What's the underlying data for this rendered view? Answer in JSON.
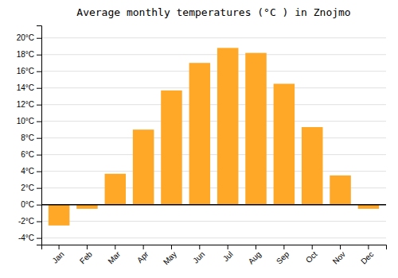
{
  "chart_data": {
    "type": "bar",
    "title": "Average monthly temperatures (°C ) in Znojmo",
    "categories": [
      "Jan",
      "Feb",
      "Mar",
      "Apr",
      "May",
      "Jun",
      "Jul",
      "Aug",
      "Sep",
      "Oct",
      "Nov",
      "Dec"
    ],
    "values": [
      -2.5,
      -0.5,
      3.7,
      9.0,
      13.7,
      17.0,
      18.8,
      18.2,
      14.5,
      9.3,
      3.5,
      -0.5
    ],
    "color": "#FFA726",
    "ylim": [
      -4.8,
      21.5
    ],
    "yticks": [
      {
        "value": -4,
        "label": "-4°C"
      },
      {
        "value": -2,
        "label": "-2°C"
      },
      {
        "value": 0,
        "label": "0°C"
      },
      {
        "value": 2,
        "label": "2°C"
      },
      {
        "value": 4,
        "label": "4°C"
      },
      {
        "value": 6,
        "label": "6°C"
      },
      {
        "value": 8,
        "label": "8°C"
      },
      {
        "value": 10,
        "label": "10°C"
      },
      {
        "value": 12,
        "label": "12°C"
      },
      {
        "value": 14,
        "label": "14°C"
      },
      {
        "value": 16,
        "label": "16°C"
      },
      {
        "value": 18,
        "label": "18°C"
      },
      {
        "value": 20,
        "label": "20°C"
      }
    ],
    "grid": true
  }
}
